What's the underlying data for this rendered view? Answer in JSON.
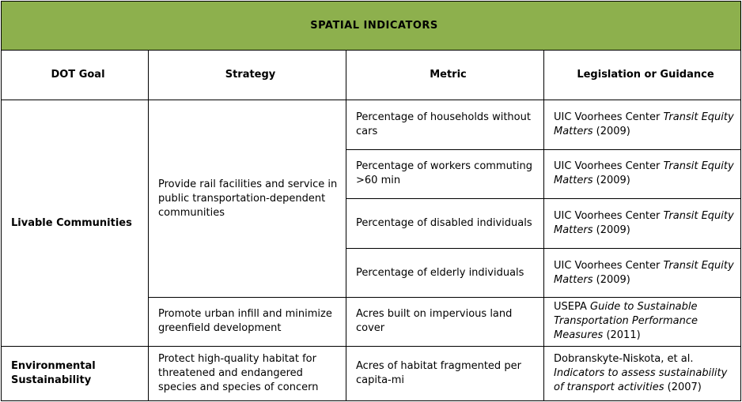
{
  "title": "SPATIAL INDICATORS",
  "headers": {
    "goal": "DOT Goal",
    "strategy": "Strategy",
    "metric": "Metric",
    "legislation": "Legislation or Guidance"
  },
  "rows": [
    {
      "goal": "Livable Communities",
      "strategy": "Provide rail facilities and service in public transportation-dependent communities",
      "metric": "Percentage of households without cars",
      "leg_text": "UIC Voorhees Center ",
      "leg_italic": "Transit Equity Matters",
      "leg_year": " (2009)"
    },
    {
      "metric": "Percentage of workers commuting >60 min",
      "leg_text": "UIC Voorhees Center ",
      "leg_italic": "Transit Equity Matters",
      "leg_year": " (2009)"
    },
    {
      "metric": "Percentage of disabled individuals",
      "leg_text": "UIC Voorhees Center ",
      "leg_italic": "Transit Equity Matters",
      "leg_year": " (2009)"
    },
    {
      "metric": "Percentage of elderly individuals",
      "leg_text": "UIC Voorhees Center ",
      "leg_italic": "Transit Equity Matters",
      "leg_year": " (2009)"
    },
    {
      "strategy": "Promote urban infill and minimize greenfield development",
      "metric": "Acres built on impervious land cover",
      "leg_text": "USEPA ",
      "leg_italic": "Guide to Sustainable Transportation Performance Measures",
      "leg_year": " (2011)"
    },
    {
      "goal": "Environmental Sustainability",
      "strategy": "Protect high-quality habitat for threatened and endangered species and species of concern",
      "metric": "Acres of habitat fragmented per capita-mi",
      "leg_text": "Dobranskyte-Niskota, et al. ",
      "leg_italic": "Indicators to assess sustainability of transport activities",
      "leg_year": " (2007)"
    }
  ],
  "colors": {
    "title_background": "#8db04d",
    "border": "#000000"
  }
}
